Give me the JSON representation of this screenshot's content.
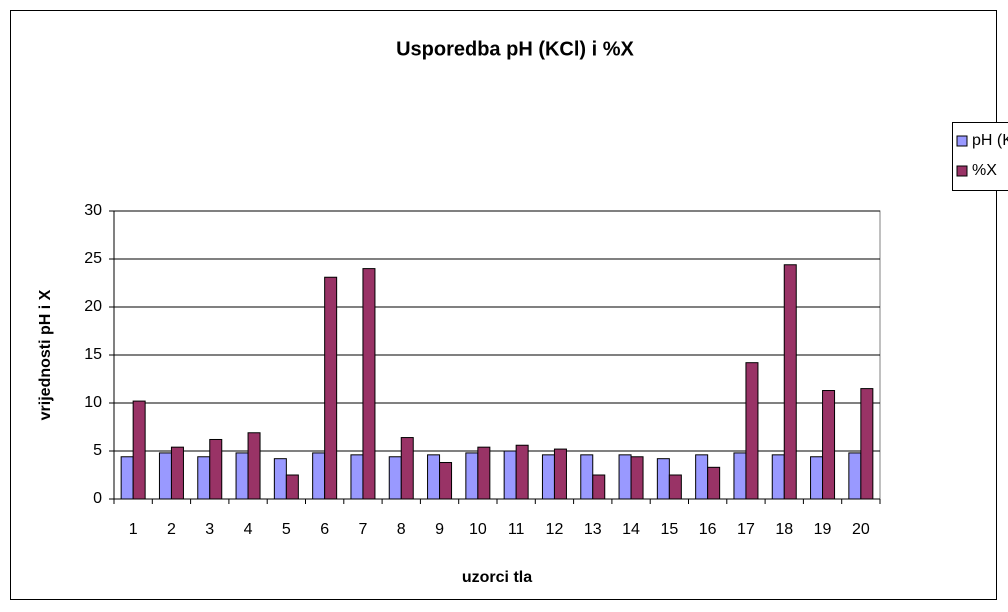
{
  "chart_data": {
    "type": "bar",
    "title": "Usporedba pH (KCl) i %X",
    "xlabel": "uzorci tla",
    "ylabel": "vrijednosti pH i X",
    "categories": [
      "1",
      "2",
      "3",
      "4",
      "5",
      "6",
      "7",
      "8",
      "9",
      "10",
      "11",
      "12",
      "13",
      "14",
      "15",
      "16",
      "17",
      "18",
      "19",
      "20"
    ],
    "series": [
      {
        "name": "pH (KCl)",
        "color": "#9999ff",
        "values": [
          4.4,
          4.8,
          4.4,
          4.8,
          4.2,
          4.8,
          4.6,
          4.4,
          4.6,
          4.8,
          5.0,
          4.6,
          4.6,
          4.6,
          4.2,
          4.6,
          4.8,
          4.6,
          4.4,
          4.8
        ]
      },
      {
        "name": "%X",
        "color": "#993366",
        "values": [
          10.2,
          5.4,
          6.2,
          6.9,
          2.5,
          23.1,
          24.0,
          6.4,
          3.8,
          5.4,
          5.6,
          5.2,
          2.5,
          4.4,
          2.5,
          3.3,
          14.2,
          24.4,
          11.3,
          11.5
        ]
      }
    ],
    "ylim": [
      0,
      30
    ],
    "yticks": [
      0,
      5,
      10,
      15,
      20,
      25,
      30
    ],
    "grid": true,
    "legend": "right"
  }
}
